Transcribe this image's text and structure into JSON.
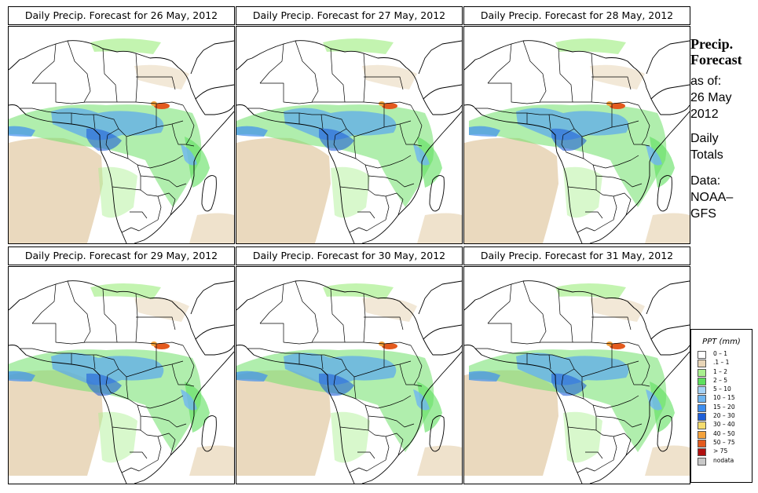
{
  "panels": [
    {
      "title": "Daily Precip. Forecast for  26 May, 2012"
    },
    {
      "title": "Daily Precip. Forecast for  27 May, 2012"
    },
    {
      "title": "Daily Precip. Forecast for  28 May, 2012"
    },
    {
      "title": "Daily Precip. Forecast for  29 May, 2012"
    },
    {
      "title": "Daily Precip. Forecast for  30 May, 2012"
    },
    {
      "title": "Daily Precip. Forecast for  31 May, 2012"
    }
  ],
  "sidebar": {
    "heading_line1": "Precip.",
    "heading_line2": "Forecast",
    "asof_line1": "as of:",
    "asof_line2": "26 May",
    "asof_line3": "2012",
    "totals_line1": "Daily",
    "totals_line2": "Totals",
    "data_line1": "Data:",
    "data_line2": "NOAA–",
    "data_line3": "GFS"
  },
  "legend": {
    "title": "PPT (mm)",
    "items": [
      {
        "label": "0 – 1",
        "color": "#ffffff"
      },
      {
        "label": ".1 – 1",
        "color": "#e8d5b7"
      },
      {
        "label": "1 – 2",
        "color": "#a9f08f"
      },
      {
        "label": "2 – 5",
        "color": "#5ee05e"
      },
      {
        "label": "5 – 10",
        "color": "#a6d2f5"
      },
      {
        "label": "10 – 15",
        "color": "#6fb5f0"
      },
      {
        "label": "15 – 20",
        "color": "#3e8ef0"
      },
      {
        "label": "20 – 30",
        "color": "#1f5fd8"
      },
      {
        "label": "30 – 40",
        "color": "#f5dc6e"
      },
      {
        "label": "40 – 50",
        "color": "#f4a23c"
      },
      {
        "label": "50 – 75",
        "color": "#e35a1e"
      },
      {
        "label": "> 75",
        "color": "#b01010"
      },
      {
        "label": "nodata",
        "color": "#c8c8c8"
      }
    ]
  }
}
